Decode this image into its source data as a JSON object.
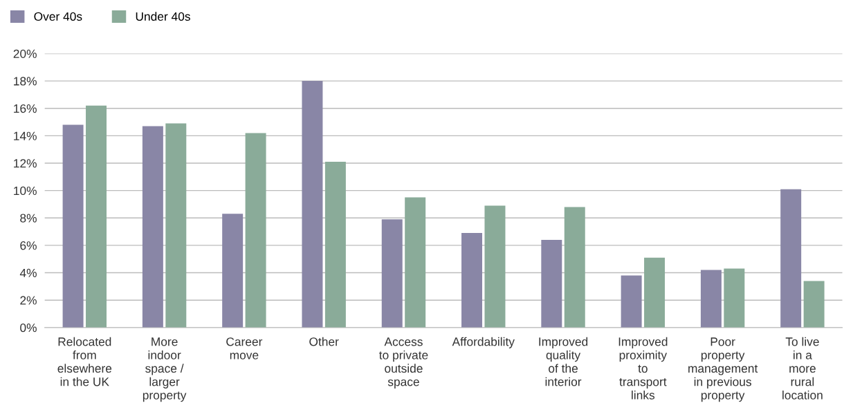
{
  "chart_data": {
    "type": "bar",
    "categories": [
      "Relocated\nfrom\nelsewhere\nin the UK",
      "More\nindoor\nspace /\nlarger\nproperty",
      "Career\nmove",
      "Other",
      "Access\nto private\noutside\nspace",
      "Affordability",
      "Improved\nquality\nof the\ninterior",
      "Improved\nproximity\nto\ntransport\nlinks",
      "Poor\nproperty\nmanagement\nin previous\nproperty",
      "To live\nin a\nmore\nrural\nlocation"
    ],
    "series": [
      {
        "name": "Over 40s",
        "color": "#8986a6",
        "values": [
          14.8,
          14.7,
          8.3,
          18.0,
          7.9,
          6.9,
          6.4,
          3.8,
          4.2,
          10.1
        ]
      },
      {
        "name": "Under 40s",
        "color": "#8aab99",
        "values": [
          16.2,
          14.9,
          14.2,
          12.1,
          9.5,
          8.9,
          8.8,
          5.1,
          4.3,
          3.4
        ]
      }
    ],
    "ylim": [
      0,
      20
    ],
    "yticks": [
      {
        "value": 0,
        "label": "0%"
      },
      {
        "value": 2,
        "label": "2%"
      },
      {
        "value": 4,
        "label": "4%"
      },
      {
        "value": 6,
        "label": "6%"
      },
      {
        "value": 8,
        "label": "8%"
      },
      {
        "value": 10,
        "label": "10%"
      },
      {
        "value": 12,
        "label": "12%"
      },
      {
        "value": 14,
        "label": "14%"
      },
      {
        "value": 16,
        "label": "16%"
      },
      {
        "value": 18,
        "label": "18%"
      },
      {
        "value": 20,
        "label": "20%"
      }
    ],
    "grid": "y",
    "legend": "top left"
  }
}
